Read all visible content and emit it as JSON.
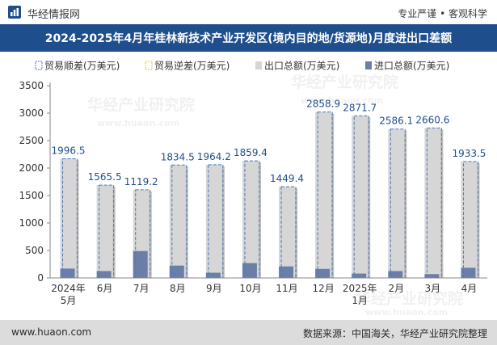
{
  "header": {
    "brand": "华经情报网",
    "tagline": "专业严谨 • 客观科学"
  },
  "title": "2024-2025年4月年桂林新技术产业开发区(境内目的地/货源地)月度进出口差额",
  "footer": {
    "website": "www.huaon.com",
    "source": "数据来源：中国海关，华经产业研究院整理"
  },
  "watermark": {
    "cn": "华经产业研究院",
    "url": "www.huaon.com"
  },
  "colors": {
    "title_bg": "#1f4e8c",
    "surplus": "#4f79b5",
    "deficit": "#e6c64a",
    "export_total": "#d6d6d6",
    "import_total": "#6b7ea8",
    "label": "#1f4e8c"
  },
  "chart_data": {
    "type": "bar",
    "title": "2024-2025年4月年桂林新技术产业开发区(境内目的地/货源地)月度进出口差额",
    "categories": [
      "2024年\n5月",
      "6月",
      "7月",
      "8月",
      "9月",
      "10月",
      "11月",
      "12月",
      "2025年\n1月",
      "2月",
      "3月",
      "4月"
    ],
    "series": [
      {
        "name": "贸易顺差(万美元)",
        "values": [
          1996.5,
          1565.5,
          1119.2,
          1834.5,
          1964.2,
          1859.4,
          1449.4,
          2858.9,
          2871.7,
          2586.1,
          2660.6,
          1933.5
        ]
      },
      {
        "name": "贸易逆差(万美元)",
        "values": [
          0,
          0,
          0,
          0,
          0,
          0,
          0,
          0,
          0,
          0,
          0,
          0
        ]
      },
      {
        "name": "出口总额(万美元)",
        "values": [
          2170,
          1690,
          1605,
          2055,
          2060,
          2130,
          1660,
          3020,
          2950,
          2710,
          2730,
          2120
        ]
      },
      {
        "name": "进口总额(万美元)",
        "values": [
          170,
          125,
          490,
          225,
          95,
          270,
          210,
          165,
          80,
          125,
          70,
          185
        ]
      }
    ],
    "data_labels": [
      "1996.5",
      "1565.5",
      "1119.2",
      "1834.5",
      "1964.2",
      "1859.4",
      "1449.4",
      "2858.9",
      "2871.7",
      "2586.1",
      "2660.6",
      "1933.5"
    ],
    "ylim": [
      0,
      3500
    ],
    "yticks": [
      0,
      500,
      1000,
      1500,
      2000,
      2500,
      3000,
      3500
    ],
    "xlabel": "",
    "ylabel": "",
    "legend_position": "top-left",
    "grid": false
  }
}
